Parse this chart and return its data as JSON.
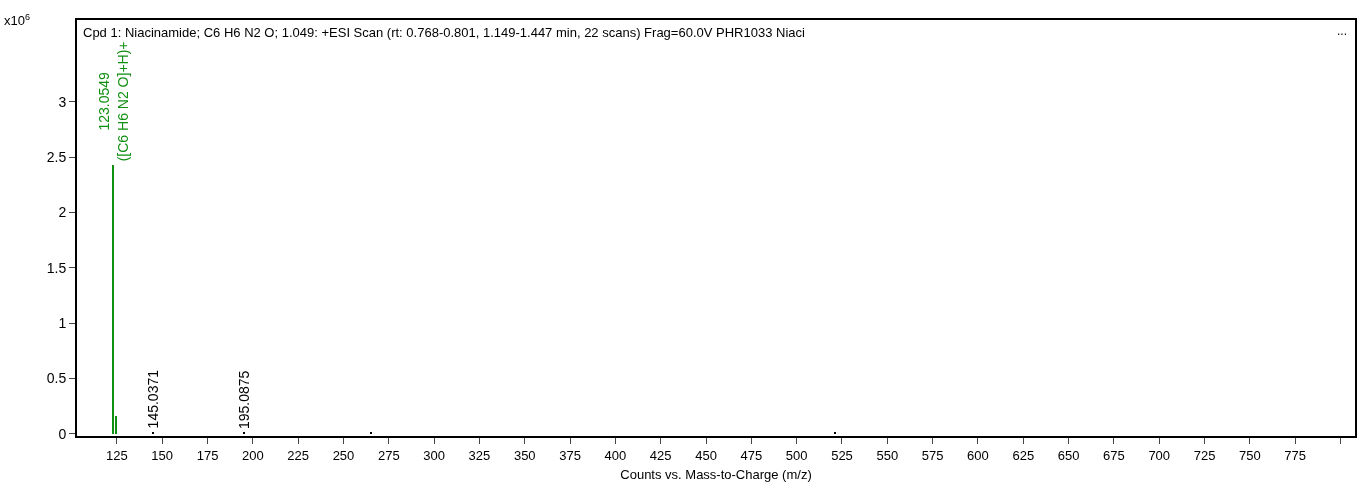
{
  "chart_data": {
    "type": "bar",
    "title": "Cpd 1: Niacinamide; C6 H6 N2 O; 1.049: +ESI Scan (rt: 0.768-0.801, 1.149-1.447 min, 22 scans) Frag=60.0V PHR1033 Niaci",
    "ylabel": "x10$^{6}$",
    "xlabel": "Counts vs. Mass-to-Charge (m/z)",
    "x": [
      123.0549,
      124.5,
      145.0371,
      195.0875,
      265,
      521
    ],
    "values": [
      2.43,
      0.16,
      0.01,
      0.01,
      0.01,
      0.02
    ],
    "colors": [
      "#109010",
      "#109010",
      "#000000",
      "#000000",
      "#000000",
      "#000000"
    ],
    "annotations": [
      "...",
      {
        "text": "123.0549\n([C6 H6 N2 O]+H)+",
        "x": 123.0549,
        "y": 2.43
      },
      {
        "text": "145.0371",
        "x": 145.0371,
        "y": 0.01
      },
      {
        "text": "195.0875",
        "x": 195.0875,
        "y": 0.01
      }
    ],
    "xlim": [
      103,
      808
    ],
    "xticks": [
      125,
      150,
      175,
      200,
      225,
      250,
      275,
      300,
      325,
      350,
      375,
      400,
      425,
      450,
      475,
      500,
      525,
      550,
      575,
      600,
      625,
      650,
      675,
      700,
      725,
      750,
      775,
      {
        "value": 800,
        "label": null
      }
    ],
    "ylim": [
      -0.02,
      3.74
    ],
    "yticks": [
      0,
      0.5,
      1,
      1.5,
      2,
      2.5,
      3
    ],
    "grid": false
  }
}
